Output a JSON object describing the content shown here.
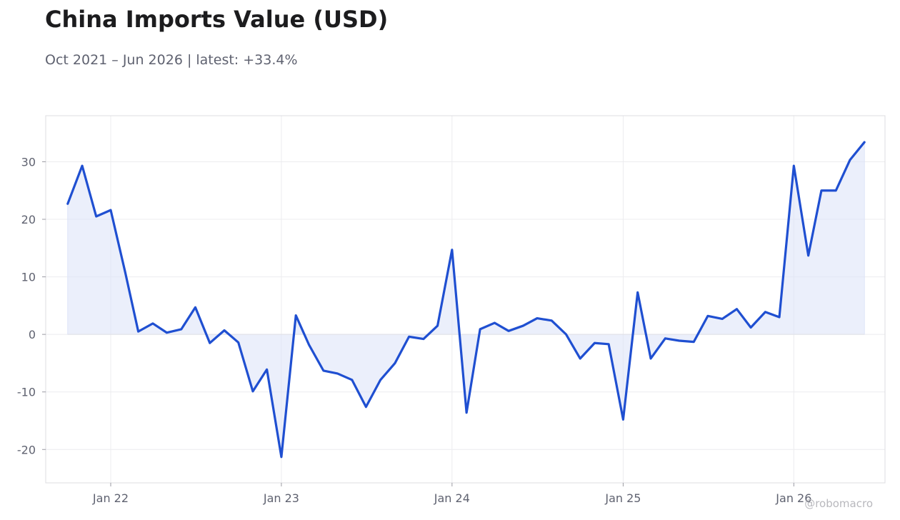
{
  "title": "China Imports Value (USD)",
  "subtitle": "Oct 2021 – Jun 2026 | latest: +33.4%",
  "watermark": "@robomacro",
  "colors": {
    "line": "#1f4fd1",
    "fill": "#dde4f8",
    "grid": "#ececef",
    "frame": "#dcdce0",
    "zero_line": "#e2e2e6"
  },
  "chart_data": {
    "type": "area",
    "title": "China Imports Value (USD)",
    "subtitle": "Oct 2021 – Jun 2026 | latest: +33.4%",
    "xlabel": "",
    "ylabel": "",
    "grid": true,
    "legend": "none",
    "xlim": [
      "2021-08-15",
      "2026-07-15"
    ],
    "ylim": [
      -25.8,
      38
    ],
    "y_ticks": [
      30,
      20,
      10,
      0,
      -10,
      -20
    ],
    "y_tick_labels": [
      "30",
      "20",
      "10",
      "0",
      "-10",
      "-20"
    ],
    "x_ticks": [
      "2022-01-01",
      "2023-01-01",
      "2024-01-01",
      "2025-01-01",
      "2026-01-01"
    ],
    "x_tick_labels": [
      "Jan 22",
      "Jan 23",
      "Jan 24",
      "Jan 25",
      "Jan 26"
    ],
    "series": [
      {
        "x": [
          "2021-10-01",
          "2021-11-01",
          "2021-12-01",
          "2022-01-01",
          "2022-02-01",
          "2022-03-01",
          "2022-04-01",
          "2022-05-01",
          "2022-06-01",
          "2022-07-01",
          "2022-08-01",
          "2022-09-01",
          "2022-10-01",
          "2022-11-01",
          "2022-12-01",
          "2023-01-01",
          "2023-02-01",
          "2023-03-01",
          "2023-04-01",
          "2023-05-01",
          "2023-06-01",
          "2023-07-01",
          "2023-08-01",
          "2023-09-01",
          "2023-10-01",
          "2023-11-01",
          "2023-12-01",
          "2024-01-01",
          "2024-02-01",
          "2024-03-01",
          "2024-04-01",
          "2024-05-01",
          "2024-06-01",
          "2024-07-01",
          "2024-08-01",
          "2024-09-01",
          "2024-10-01",
          "2024-11-01",
          "2024-12-01",
          "2025-01-01",
          "2025-02-01",
          "2025-03-01",
          "2025-04-01",
          "2025-05-01",
          "2025-06-01",
          "2025-07-01",
          "2025-08-01",
          "2025-09-01",
          "2025-10-01",
          "2025-11-01",
          "2025-12-01",
          "2026-01-01",
          "2026-02-01",
          "2026-03-01",
          "2026-04-01",
          "2026-05-01",
          "2026-06-01"
        ],
        "values": [
          22.7,
          29.3,
          20.5,
          21.6,
          10.8,
          0.5,
          1.9,
          0.3,
          0.9,
          4.7,
          -1.5,
          0.7,
          -1.4,
          -9.9,
          -6.1,
          -21.3,
          3.3,
          -1.8,
          -6.3,
          -6.8,
          -7.9,
          -12.6,
          -7.9,
          -5.0,
          -0.4,
          -0.8,
          1.5,
          14.7,
          -13.6,
          0.9,
          2.0,
          0.6,
          1.5,
          2.8,
          2.4,
          0.0,
          -4.2,
          -1.5,
          -1.7,
          -14.8,
          7.3,
          -4.2,
          -0.7,
          -1.1,
          -1.3,
          3.2,
          2.7,
          4.4,
          1.2,
          3.9,
          3.0,
          29.3,
          13.7,
          25.0,
          25.0,
          30.3,
          33.4
        ]
      }
    ]
  }
}
